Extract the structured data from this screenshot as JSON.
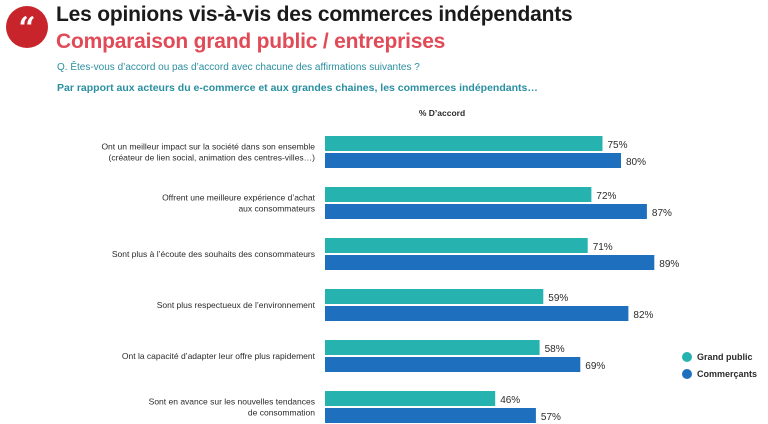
{
  "header": {
    "title": "Les opinions vis-à-vis des commerces indépendants",
    "subtitle": "Comparaison grand public / entreprises",
    "question": "Q. Êtes-vous d’accord ou pas d’accord avec chacune des affirmations suivantes ?",
    "intro": "Par rapport aux acteurs du e-commerce et aux grandes chaines, les commerces indépendants…"
  },
  "colors": {
    "badge": "#c8242b",
    "title": "#1a1a1a",
    "subtitle": "#e14a57",
    "question": "#2a8fa0",
    "grand_public": "#26b3b0",
    "commercants": "#1f6fbf"
  },
  "icons": {
    "badge": "quote-icon"
  },
  "chart_data": {
    "type": "bar",
    "orientation": "horizontal",
    "xlabel": "% D’accord",
    "xlim": [
      0,
      100
    ],
    "value_suffix": "%",
    "categories": [
      [
        "Ont un meilleur impact sur la société dans son ensemble",
        "(créateur de lien social, animation des centres-villes…)"
      ],
      [
        "Offrent une meilleure expérience d’achat",
        "aux consommateurs"
      ],
      [
        "Sont plus à l’écoute des souhaits des consommateurs"
      ],
      [
        "Sont plus respectueux de l’environnement"
      ],
      [
        "Ont la capacité d’adapter leur offre plus rapidement"
      ],
      [
        "Sont en avance sur les nouvelles tendances",
        "de consommation"
      ]
    ],
    "series": [
      {
        "name": "Grand public",
        "color": "#26b3b0",
        "values": [
          75,
          72,
          71,
          59,
          58,
          46
        ]
      },
      {
        "name": "Commerçants",
        "color": "#1f6fbf",
        "values": [
          80,
          87,
          89,
          82,
          69,
          57
        ]
      }
    ],
    "legend": "bottom-right",
    "grid": false
  }
}
